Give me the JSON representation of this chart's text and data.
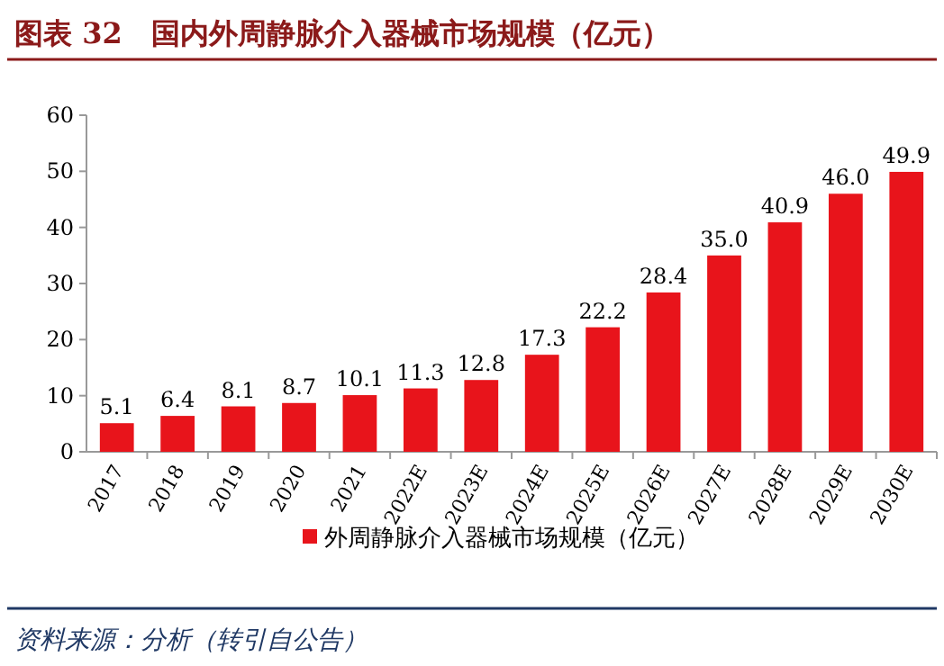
{
  "chart_data": {
    "type": "bar",
    "title": "图表 32　国内外周静脉介入器械市场规模（亿元）",
    "categories": [
      "2017",
      "2018",
      "2019",
      "2020",
      "2021",
      "2022E",
      "2023E",
      "2024E",
      "2025E",
      "2026E",
      "2027E",
      "2028E",
      "2029E",
      "2030E"
    ],
    "series": [
      {
        "name": "外周静脉介入器械市场规模（亿元）",
        "color": "#e8141b",
        "values": [
          5.1,
          6.4,
          8.1,
          8.7,
          10.1,
          11.3,
          12.8,
          17.3,
          22.2,
          28.4,
          35.0,
          40.9,
          46.0,
          49.9
        ]
      }
    ],
    "value_labels": [
      "5.1",
      "6.4",
      "8.1",
      "8.7",
      "10.1",
      "11.3",
      "12.8",
      "17.3",
      "22.2",
      "28.4",
      "35.0",
      "40.9",
      "46.0",
      "49.9"
    ],
    "ylim": [
      0,
      60
    ],
    "yticks": [
      0,
      10,
      20,
      30,
      40,
      50,
      60
    ],
    "legend": "bottom",
    "annotations": [
      "资料来源：分析（转引自公告）"
    ]
  }
}
